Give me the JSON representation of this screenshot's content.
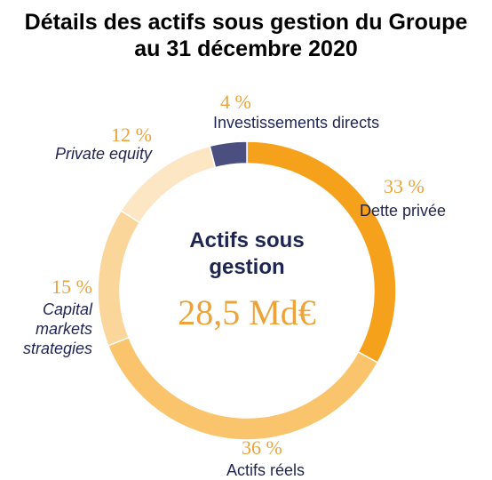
{
  "chart_data": {
    "type": "donut",
    "title": "Détails des actifs sous gestion du Groupe au 31 décembre 2020",
    "center_label": "Actifs sous gestion",
    "center_value": "28,5 Md€",
    "categories": [
      "Dette privée",
      "Actifs réels",
      "Capital markets strategies",
      "Private equity",
      "Investissements directs"
    ],
    "values": [
      33,
      36,
      15,
      12,
      4
    ],
    "value_labels": [
      "33 %",
      "36 %",
      "15 %",
      "12 %",
      "4 %"
    ],
    "colors": [
      "#f6a11c",
      "#f9c46c",
      "#fbd69a",
      "#fde6c4",
      "#4b4f80"
    ]
  }
}
